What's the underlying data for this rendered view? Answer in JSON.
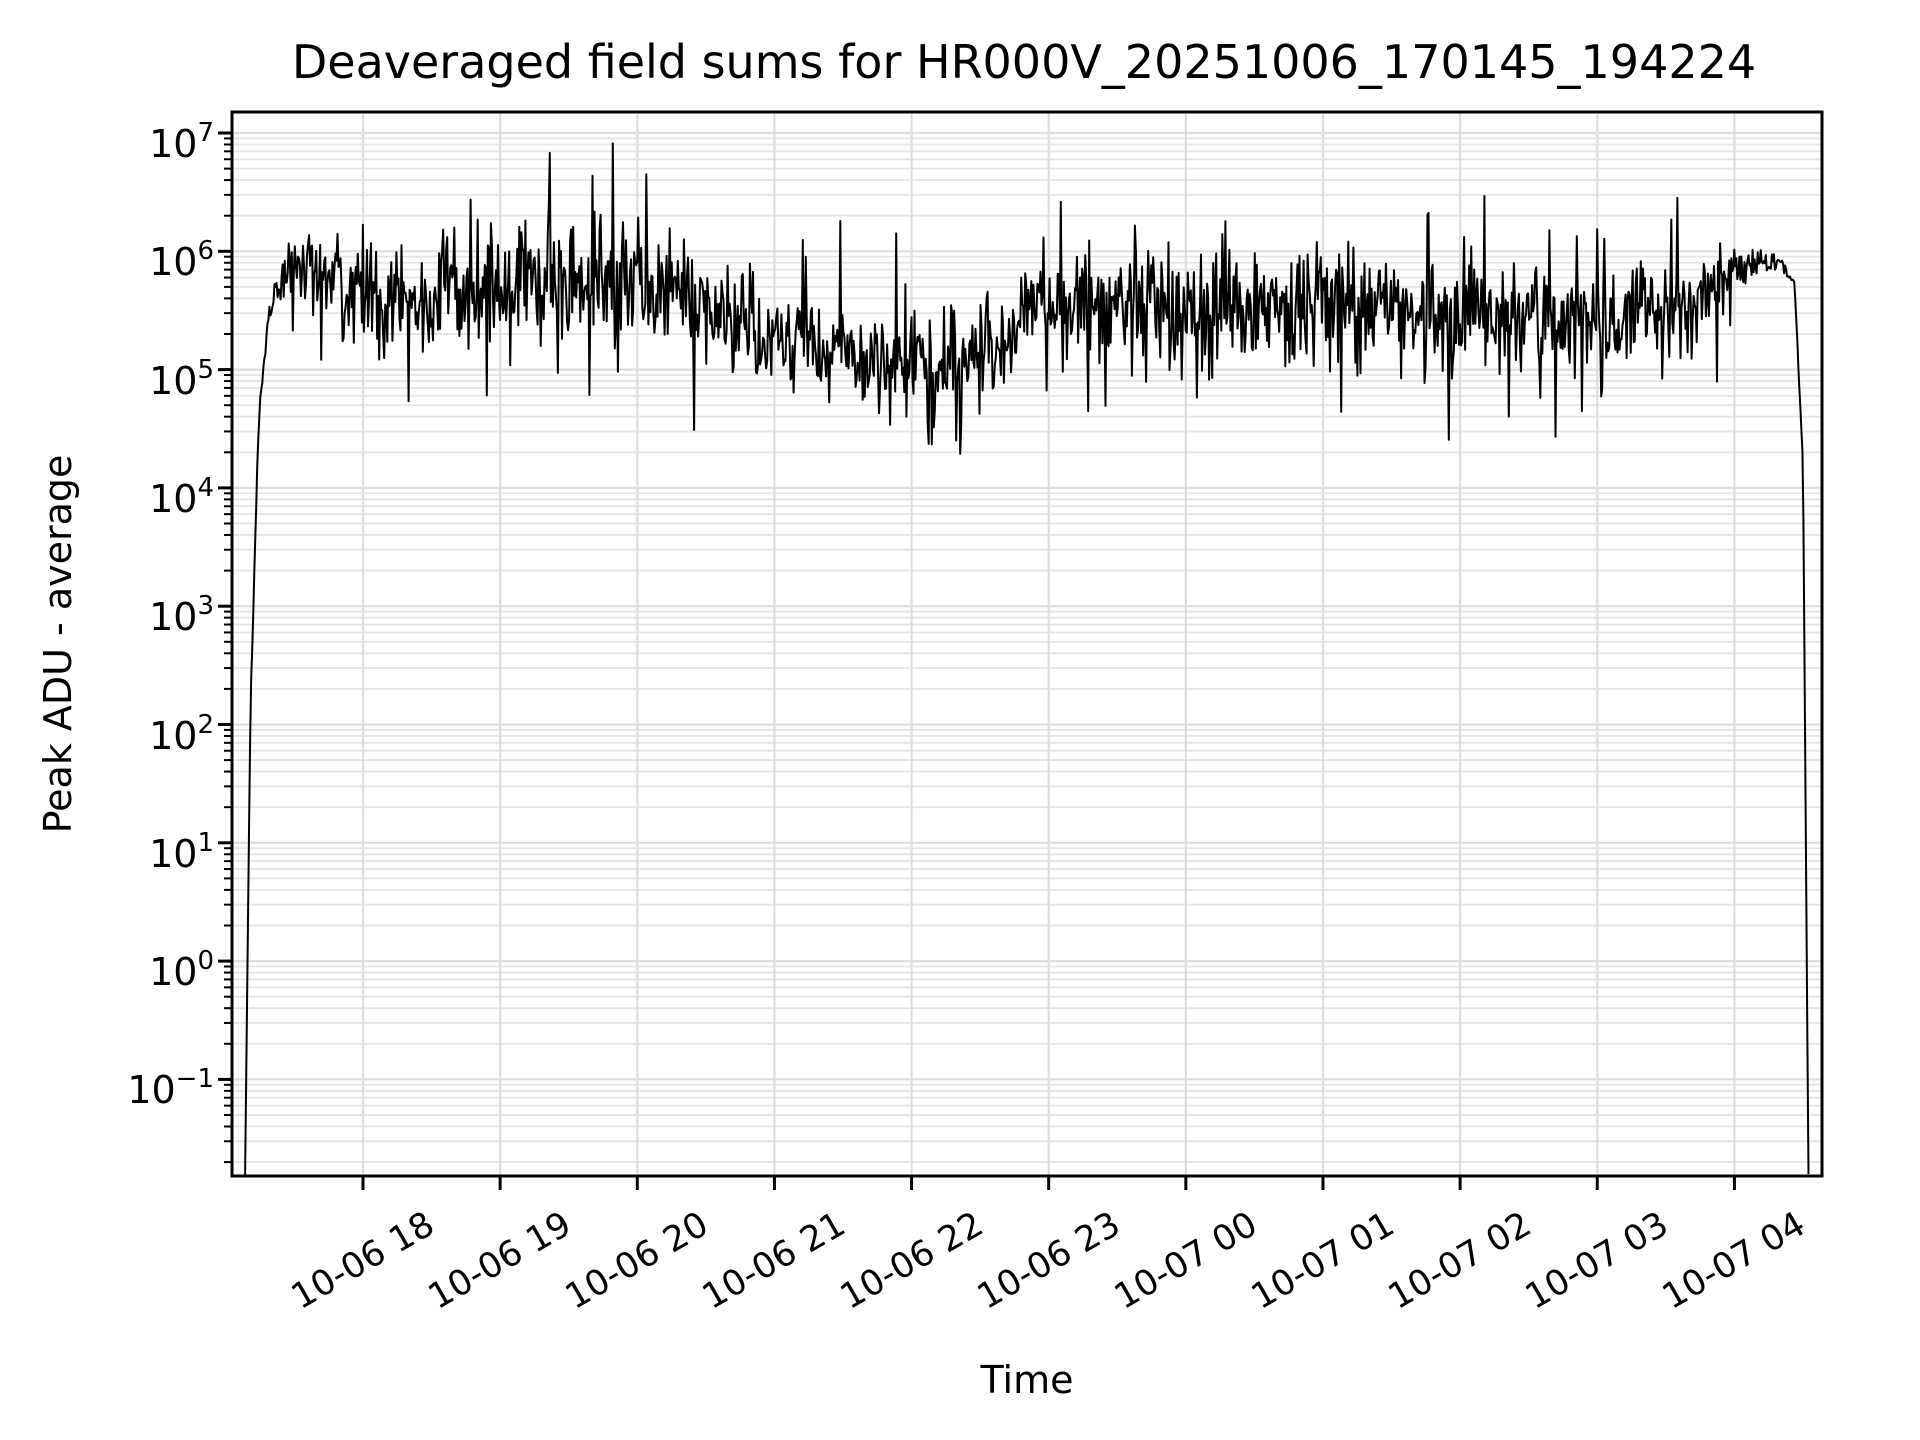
{
  "figure": {
    "background": "#ffffff",
    "text_color": "#000000"
  },
  "chart_data": {
    "type": "line",
    "title": "Deaveraged field sums for HR000V_20251006_170145_194224",
    "xlabel": "Time",
    "ylabel": "Peak ADU - average",
    "x_scale": "time",
    "y_scale": "log",
    "grid": {
      "on": true,
      "color_major": "#dedede",
      "color_minor": "#e5e5e5",
      "vertical_at_major_x": true,
      "horizontal_log_minors": true
    },
    "legend": {
      "shown": false
    },
    "x_ticks": [
      {
        "hour": 18,
        "label": "10-06 18"
      },
      {
        "hour": 19,
        "label": "10-06 19"
      },
      {
        "hour": 20,
        "label": "10-06 20"
      },
      {
        "hour": 21,
        "label": "10-06 21"
      },
      {
        "hour": 22,
        "label": "10-06 22"
      },
      {
        "hour": 23,
        "label": "10-06 23"
      },
      {
        "hour": 24,
        "label": "10-07 00"
      },
      {
        "hour": 25,
        "label": "10-07 01"
      },
      {
        "hour": 26,
        "label": "10-07 02"
      },
      {
        "hour": 27,
        "label": "10-07 03"
      },
      {
        "hour": 28,
        "label": "10-07 04"
      }
    ],
    "x_tick_rotation_deg": 30,
    "y_tick_exponents": [
      -1,
      0,
      1,
      2,
      3,
      4,
      5,
      6,
      7
    ],
    "y_tick_base": "10",
    "xlim_hours_from_1006_midnight": [
      17.05,
      28.64
    ],
    "ylim": [
      0.015,
      15000000
    ],
    "series": [
      {
        "name": "deaveraged field sum",
        "color": "#000000",
        "linewidth": 2,
        "summary": {
          "start_time": "10-06 17:08",
          "end_time": "10-07 04:33",
          "min_approx": 30000,
          "max_approx": 6000000,
          "typical_level": 300000,
          "shape": "steep rise from zero at start, noisy plateau between ~5e4 and ~5e6, steep fall to zero at end"
        },
        "seed": 77,
        "points_per_hour": 135,
        "noise_model": {
          "spike_up_prob": 0.022,
          "spike_up_dex": [
            0.35,
            0.95
          ],
          "dip_prob": 0.045,
          "dip_dex": [
            0.25,
            0.75
          ]
        },
        "trend_log10": [
          [
            17.14,
            -1.8,
            0.005
          ],
          [
            17.18,
            2.2,
            0.02
          ],
          [
            17.24,
            4.6,
            0.04
          ],
          [
            17.32,
            5.55,
            0.06
          ],
          [
            17.42,
            5.82,
            0.1
          ],
          [
            17.55,
            5.9,
            0.14
          ],
          [
            17.8,
            5.72,
            0.2
          ],
          [
            18.1,
            5.62,
            0.22
          ],
          [
            18.45,
            5.55,
            0.24
          ],
          [
            18.8,
            5.62,
            0.26
          ],
          [
            19.1,
            5.74,
            0.28
          ],
          [
            19.45,
            5.78,
            0.28
          ],
          [
            19.75,
            5.72,
            0.26
          ],
          [
            20.1,
            5.68,
            0.24
          ],
          [
            20.45,
            5.55,
            0.24
          ],
          [
            20.8,
            5.38,
            0.23
          ],
          [
            21.15,
            5.22,
            0.22
          ],
          [
            21.5,
            5.15,
            0.22
          ],
          [
            21.9,
            5.08,
            0.22
          ],
          [
            22.2,
            5.02,
            0.22
          ],
          [
            22.5,
            5.12,
            0.22
          ],
          [
            22.8,
            5.45,
            0.22
          ],
          [
            23.1,
            5.58,
            0.22
          ],
          [
            23.5,
            5.6,
            0.24
          ],
          [
            23.9,
            5.5,
            0.25
          ],
          [
            24.3,
            5.45,
            0.25
          ],
          [
            24.7,
            5.55,
            0.26
          ],
          [
            25.1,
            5.52,
            0.25
          ],
          [
            25.5,
            5.48,
            0.25
          ],
          [
            25.9,
            5.45,
            0.24
          ],
          [
            26.3,
            5.42,
            0.23
          ],
          [
            26.7,
            5.38,
            0.22
          ],
          [
            27.05,
            5.35,
            0.22
          ],
          [
            27.4,
            5.6,
            0.2
          ],
          [
            27.7,
            5.52,
            0.18
          ],
          [
            27.95,
            5.8,
            0.12
          ],
          [
            28.15,
            5.92,
            0.06
          ],
          [
            28.33,
            5.93,
            0.035
          ],
          [
            28.44,
            5.7,
            0.02
          ],
          [
            28.5,
            4.2,
            0.01
          ],
          [
            28.54,
            -1.8,
            0.0
          ]
        ]
      }
    ],
    "axes_style": {
      "spine_color": "#000000",
      "spine_width": 3,
      "major_tick_len": 14,
      "minor_tick_len": 8
    }
  }
}
